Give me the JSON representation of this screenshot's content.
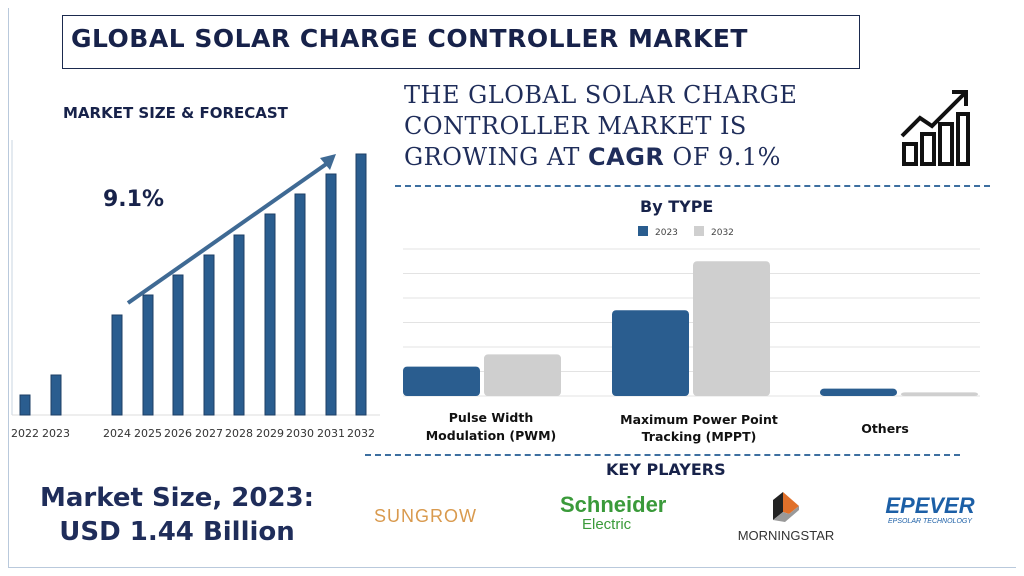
{
  "title": "GLOBAL SOLAR CHARGE CONTROLLER MARKET",
  "market_heading": "MARKET SIZE & FORECAST",
  "headline": {
    "line1": "THE GLOBAL SOLAR CHARGE",
    "line2": "CONTROLLER MARKET IS",
    "line3_pre": "GROWING AT ",
    "line3_bold": "CAGR",
    "line3_post": " OF 9.1%"
  },
  "market_size": {
    "line1": "Market Size, 2023:",
    "line2": "USD 1.44 Billion"
  },
  "key_players_heading": "KEY PLAYERS",
  "key_players": [
    "SUNGROW",
    "Schneider Electric",
    "MORNINGSTAR",
    "EPEVER EPSOLAR TECHNOLOGY"
  ],
  "icons": [
    "growth-chart-icon"
  ],
  "colors": {
    "navy": "#1b2a4e",
    "bar_blue": "#2a5d8f",
    "bar_grey": "#cfcfcf"
  },
  "chart_data": [
    {
      "type": "bar",
      "title": "",
      "annotation": "9.1%",
      "categories": [
        "2022",
        "2023",
        "2024",
        "2025",
        "2026",
        "2027",
        "2028",
        "2029",
        "2030",
        "2031",
        "2032"
      ],
      "values": [
        20,
        40,
        100,
        120,
        140,
        160,
        180,
        201,
        221,
        241,
        261
      ],
      "note_units": "relative",
      "grid": false
    },
    {
      "type": "bar",
      "title": "By TYPE",
      "categories": [
        "Pulse Width Modulation (PWM)",
        "Maximum Power Point Tracking (MPPT)",
        "Others"
      ],
      "series": [
        {
          "name": "2023",
          "values": [
            1.2,
            3.5,
            0.3
          ]
        },
        {
          "name": "2032",
          "values": [
            1.7,
            5.5,
            0.15
          ]
        }
      ],
      "ylim": [
        0,
        6
      ],
      "grid": true,
      "legend": "top"
    }
  ]
}
